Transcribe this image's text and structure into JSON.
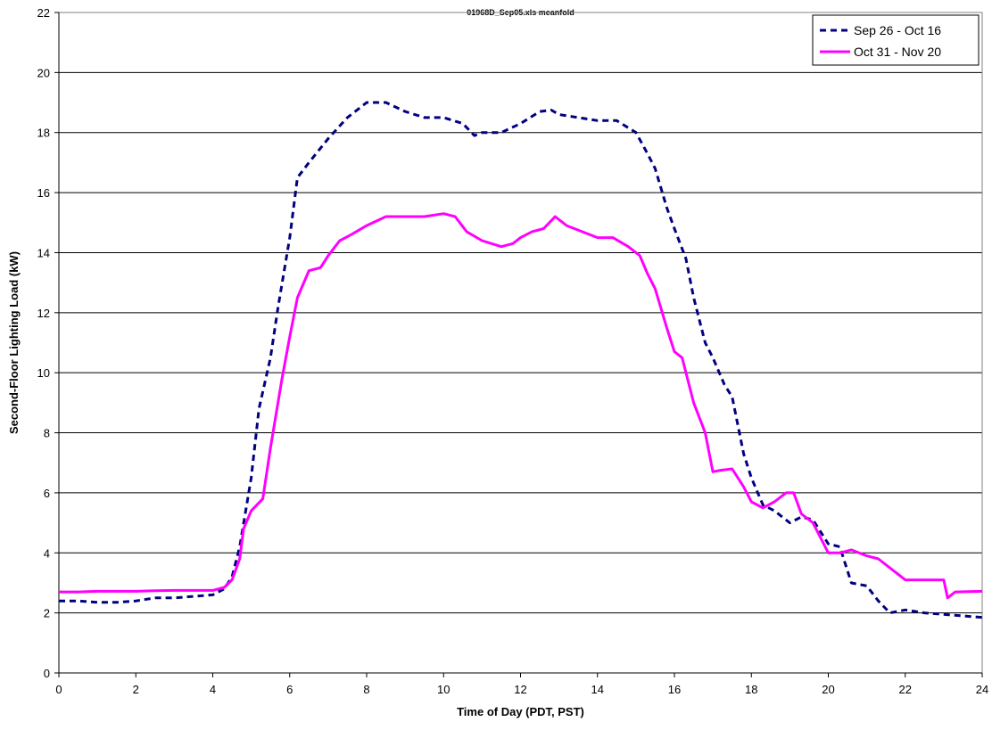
{
  "chart_data": {
    "type": "line",
    "title": "01968D_Sep05.xls meanfold",
    "xlabel": "Time of Day (PDT, PST)",
    "ylabel": "Second-Floor Lighting Load (kW)",
    "xlim": [
      0,
      24
    ],
    "ylim": [
      0,
      22
    ],
    "xticks": [
      "0",
      "2",
      "4",
      "6",
      "8",
      "10",
      "12",
      "14",
      "16",
      "18",
      "20",
      "22",
      "24"
    ],
    "yticks": [
      "0",
      "2",
      "4",
      "6",
      "8",
      "10",
      "12",
      "14",
      "16",
      "18",
      "20",
      "22"
    ],
    "grid": "horizontal",
    "legend_position": "top-right",
    "series": [
      {
        "name": "Sep 26 - Oct 16",
        "color": "#000080",
        "style": "dashed",
        "x": [
          0,
          0.5,
          1,
          1.5,
          2,
          2.5,
          3,
          3.5,
          4,
          4.3,
          4.5,
          4.7,
          5,
          5.2,
          5.5,
          5.7,
          6,
          6.2,
          6.5,
          7,
          7.5,
          8,
          8.5,
          9,
          9.5,
          10,
          10.5,
          10.8,
          11,
          11.5,
          12,
          12.5,
          12.8,
          13,
          13.5,
          14,
          14.5,
          15,
          15.3,
          15.5,
          15.8,
          16,
          16.3,
          16.5,
          16.8,
          17,
          17.3,
          17.5,
          17.8,
          18,
          18.3,
          18.6,
          19,
          19.3,
          19.6,
          20,
          20.3,
          20.6,
          21,
          21.3,
          21.6,
          22,
          22.5,
          23,
          23.5,
          24
        ],
        "y": [
          2.4,
          2.4,
          2.35,
          2.35,
          2.4,
          2.5,
          2.5,
          2.55,
          2.6,
          2.8,
          3.2,
          4.2,
          6.5,
          8.8,
          10.5,
          12.2,
          14.5,
          16.5,
          17.0,
          17.8,
          18.5,
          19.0,
          19.0,
          18.7,
          18.5,
          18.5,
          18.3,
          17.9,
          18.0,
          18.0,
          18.3,
          18.7,
          18.75,
          18.6,
          18.5,
          18.4,
          18.4,
          18.0,
          17.3,
          16.8,
          15.5,
          14.8,
          13.8,
          12.5,
          11.0,
          10.5,
          9.6,
          9.2,
          7.3,
          6.5,
          5.6,
          5.4,
          5.0,
          5.2,
          5.1,
          4.3,
          4.2,
          3.0,
          2.9,
          2.4,
          2.0,
          2.1,
          2.0,
          1.95,
          1.9,
          1.85
        ]
      },
      {
        "name": "Oct 31 - Nov 20",
        "color": "#ff00ff",
        "style": "solid",
        "x": [
          0,
          0.5,
          1,
          1.5,
          2,
          2.5,
          3,
          3.5,
          4,
          4.3,
          4.5,
          4.7,
          4.8,
          5,
          5.3,
          5.5,
          5.8,
          6,
          6.2,
          6.5,
          6.8,
          7,
          7.3,
          7.6,
          8,
          8.5,
          9,
          9.5,
          10,
          10.3,
          10.6,
          11,
          11.5,
          11.8,
          12,
          12.3,
          12.6,
          12.9,
          13.2,
          13.6,
          14,
          14.4,
          14.8,
          15.1,
          15.3,
          15.5,
          15.8,
          16,
          16.2,
          16.5,
          16.8,
          17,
          17.2,
          17.5,
          17.8,
          18,
          18.3,
          18.6,
          18.9,
          19.1,
          19.3,
          19.6,
          20,
          20.3,
          20.6,
          21,
          21.3,
          21.6,
          22,
          22.5,
          23,
          23.1,
          23.3,
          24
        ],
        "y": [
          2.7,
          2.7,
          2.72,
          2.72,
          2.72,
          2.74,
          2.75,
          2.75,
          2.75,
          2.85,
          3.1,
          3.8,
          4.8,
          5.4,
          5.8,
          7.5,
          9.8,
          11.2,
          12.5,
          13.4,
          13.5,
          13.9,
          14.4,
          14.6,
          14.9,
          15.2,
          15.2,
          15.2,
          15.3,
          15.2,
          14.7,
          14.4,
          14.2,
          14.3,
          14.5,
          14.7,
          14.8,
          15.2,
          14.9,
          14.7,
          14.5,
          14.5,
          14.2,
          13.9,
          13.3,
          12.8,
          11.5,
          10.7,
          10.5,
          9.0,
          8.0,
          6.7,
          6.75,
          6.8,
          6.2,
          5.7,
          5.5,
          5.7,
          6.0,
          6.0,
          5.3,
          5.0,
          4.0,
          4.0,
          4.1,
          3.9,
          3.8,
          3.5,
          3.1,
          3.1,
          3.1,
          2.5,
          2.7,
          2.72
        ]
      }
    ]
  }
}
